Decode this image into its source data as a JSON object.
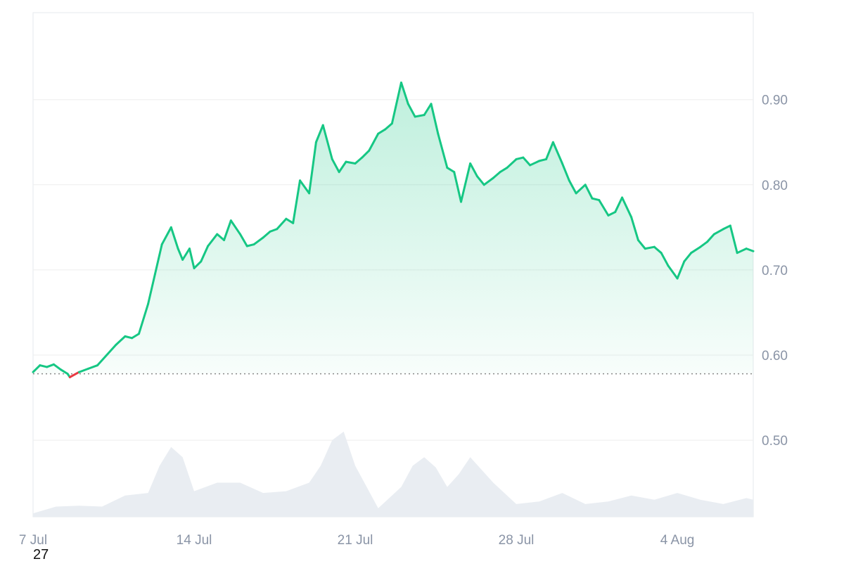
{
  "corner_label": "27",
  "chart_data": {
    "type": "area",
    "x_axis": {
      "ticks": [
        "7 Jul",
        "14 Jul",
        "21 Jul",
        "28 Jul",
        "4 Aug"
      ],
      "range": [
        "7 Jul",
        "7 Aug"
      ]
    },
    "y_axis": {
      "position": "right",
      "ticks": [
        0.5,
        0.6,
        0.7,
        0.8,
        0.9
      ],
      "tick_labels": [
        "0.50",
        "0.60",
        "0.70",
        "0.80",
        "0.90"
      ],
      "range": [
        0.41,
        1.0
      ]
    },
    "grid": "horizontal",
    "baseline": {
      "value": 0.578,
      "style": "dotted"
    },
    "colors": {
      "line_above": "#16c784",
      "line_below": "#ea3943",
      "fill_top": "#16c784",
      "baseline": "#888888",
      "grid": "#eeeeee",
      "volume": "#e9edf2",
      "tick_text": "#8a94a6",
      "frame": "#e6e8ec"
    },
    "series": [
      {
        "x": [
          0,
          0.3,
          0.6,
          0.9,
          1.2,
          1.5,
          1.6,
          2.0,
          2.4,
          2.8,
          3.2,
          3.6,
          4.0,
          4.3,
          4.6,
          5.0,
          5.3,
          5.6,
          6.0,
          6.3,
          6.5,
          6.8,
          7.0,
          7.3,
          7.6,
          8.0,
          8.3,
          8.6,
          9.0,
          9.3,
          9.6,
          10.0,
          10.3,
          10.6,
          11.0,
          11.3,
          11.6,
          12.0,
          12.3,
          12.6,
          13.0,
          13.3,
          13.6,
          14.0,
          14.3,
          14.6,
          15.0,
          15.3,
          15.6,
          16.0,
          16.3,
          16.6,
          17.0,
          17.3,
          17.6,
          18.0,
          18.3,
          18.6,
          19.0,
          19.3,
          19.6,
          20.0,
          20.3,
          20.6,
          21.0,
          21.3,
          21.6,
          22.0,
          22.3,
          22.6,
          23.0,
          23.3,
          23.6,
          24.0,
          24.3,
          24.6,
          25.0,
          25.3,
          25.6,
          26.0,
          26.3,
          26.6,
          27.0,
          27.3,
          27.6,
          28.0,
          28.3,
          28.6,
          29.0,
          29.3,
          29.6,
          30.0,
          30.3,
          30.6,
          31.0,
          31.3
        ],
        "y": [
          0.58,
          0.588,
          0.586,
          0.589,
          0.583,
          0.578,
          0.574,
          0.58,
          0.584,
          0.588,
          0.6,
          0.612,
          0.622,
          0.62,
          0.625,
          0.66,
          0.695,
          0.73,
          0.75,
          0.725,
          0.712,
          0.725,
          0.702,
          0.71,
          0.728,
          0.742,
          0.735,
          0.758,
          0.742,
          0.728,
          0.73,
          0.738,
          0.745,
          0.748,
          0.76,
          0.755,
          0.805,
          0.79,
          0.85,
          0.87,
          0.83,
          0.815,
          0.827,
          0.825,
          0.832,
          0.84,
          0.86,
          0.865,
          0.872,
          0.92,
          0.895,
          0.88,
          0.882,
          0.895,
          0.86,
          0.82,
          0.815,
          0.78,
          0.825,
          0.81,
          0.8,
          0.808,
          0.815,
          0.82,
          0.83,
          0.832,
          0.823,
          0.828,
          0.83,
          0.85,
          0.825,
          0.805,
          0.79,
          0.8,
          0.784,
          0.782,
          0.764,
          0.768,
          0.785,
          0.762,
          0.735,
          0.725,
          0.727,
          0.72,
          0.705,
          0.69,
          0.71,
          0.72,
          0.727,
          0.733,
          0.742,
          0.748,
          0.752,
          0.72,
          0.725,
          0.722
        ]
      }
    ],
    "volume": {
      "x": [
        0,
        1,
        2,
        3,
        4,
        5,
        5.5,
        6,
        6.5,
        7,
        8,
        9,
        10,
        11,
        12,
        12.5,
        13,
        13.5,
        14,
        15,
        16,
        16.5,
        17,
        17.5,
        18,
        18.5,
        19,
        20,
        21,
        22,
        23,
        24,
        25,
        26,
        27,
        28,
        29,
        30,
        31,
        31.3
      ],
      "y": [
        0.004,
        0.012,
        0.013,
        0.012,
        0.025,
        0.028,
        0.06,
        0.082,
        0.07,
        0.03,
        0.04,
        0.04,
        0.028,
        0.03,
        0.04,
        0.06,
        0.09,
        0.1,
        0.06,
        0.01,
        0.035,
        0.06,
        0.07,
        0.058,
        0.035,
        0.05,
        0.07,
        0.04,
        0.015,
        0.018,
        0.028,
        0.015,
        0.018,
        0.025,
        0.02,
        0.028,
        0.02,
        0.015,
        0.022,
        0.02
      ]
    }
  }
}
